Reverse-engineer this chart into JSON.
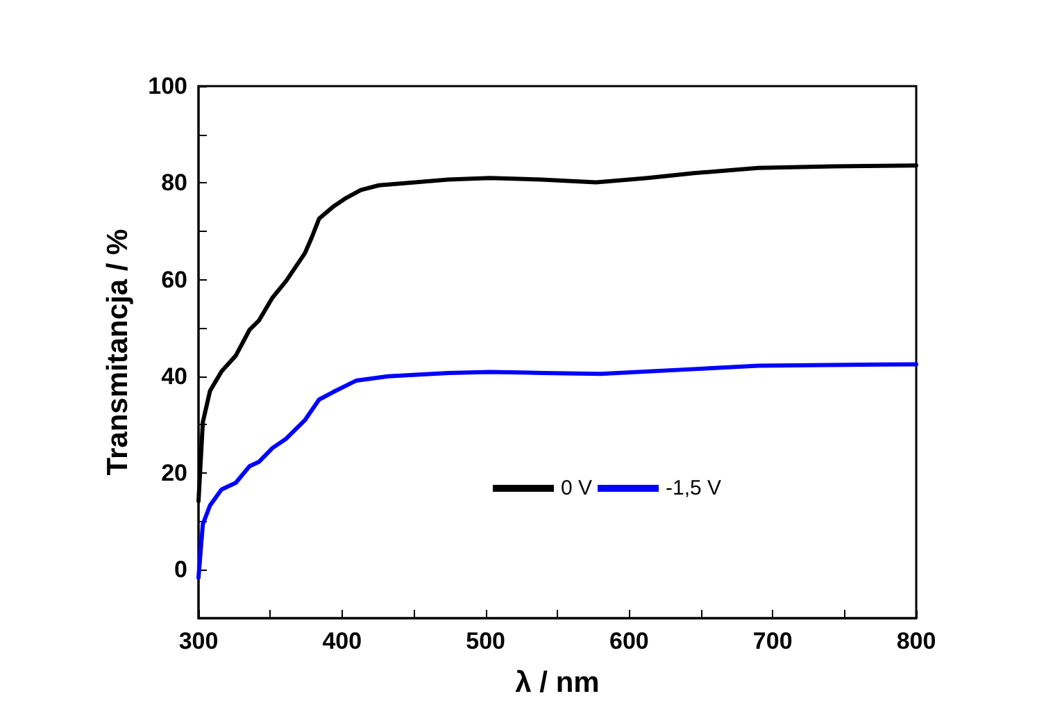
{
  "chart_data": {
    "type": "line",
    "xlabel": "λ / nm",
    "ylabel": "Transmitancja / %",
    "xlim": [
      300,
      800
    ],
    "ylim": [
      -10,
      100
    ],
    "xticks": [
      300,
      {
        "value": 350,
        "label": null
      },
      400,
      {
        "value": 450,
        "label": null
      },
      500,
      {
        "value": 550,
        "label": null
      },
      600,
      {
        "value": 650,
        "label": null
      },
      700,
      {
        "value": 750,
        "label": null
      },
      800
    ],
    "yticks": [
      0,
      {
        "value": 10,
        "label": null
      },
      20,
      {
        "value": 30,
        "label": null
      },
      40,
      {
        "value": 50,
        "label": null
      },
      60,
      {
        "value": 70,
        "label": null
      },
      80,
      {
        "value": 90,
        "label": null
      },
      100
    ],
    "grid": false,
    "legend": "bottom",
    "marker": "none",
    "line_style": "solid",
    "series": [
      {
        "name": "0 V",
        "color": "#000000",
        "x": [
          300,
          303,
          308,
          316,
          326,
          335.5,
          342,
          351.6,
          361,
          374,
          379,
          384,
          393.5,
          403,
          413,
          425.7,
          442,
          474,
          503,
          538.6,
          577,
          612.8,
          645,
          690,
          741.7,
          800
        ],
        "values": [
          14.2,
          30.5,
          37,
          41,
          44.3,
          49.6,
          51.5,
          56.3,
          59.7,
          65.4,
          68.8,
          72.6,
          75,
          76.9,
          78.5,
          79.5,
          79.9,
          80.7,
          81,
          80.7,
          80.1,
          81,
          82,
          83.1,
          83.4,
          83.6
        ]
      },
      {
        "name": "-1,5 V",
        "color": "#0000ff",
        "x": [
          300,
          303,
          308,
          316,
          326,
          335.5,
          342,
          351.6,
          361,
          374,
          384,
          393.5,
          409.7,
          432,
          474,
          503,
          540,
          580,
          645,
          690,
          800
        ],
        "values": [
          -1.6,
          9.4,
          13.3,
          16.6,
          18,
          21.4,
          22.3,
          25.2,
          27.1,
          30.9,
          35.2,
          36.7,
          39.1,
          40,
          40.7,
          40.9,
          40.7,
          40.5,
          41.5,
          42.2,
          42.5
        ]
      }
    ]
  }
}
